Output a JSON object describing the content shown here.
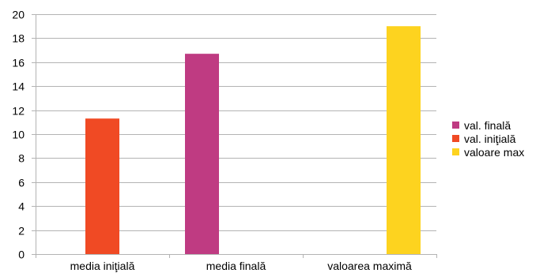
{
  "chart_data": {
    "type": "bar",
    "categories": [
      "media iniţială",
      "media finală",
      "valoarea maximă"
    ],
    "series": [
      {
        "name": "val. finală",
        "color": "#bf3b82",
        "values": [
          null,
          16.7,
          null
        ]
      },
      {
        "name": "val. iniţială",
        "color": "#f04a24",
        "values": [
          11.3,
          null,
          null
        ]
      },
      {
        "name": "valoare max",
        "color": "#fdd31f",
        "values": [
          null,
          null,
          19.0
        ]
      }
    ],
    "ylim": [
      0,
      20
    ],
    "yticks": [
      "0",
      "2",
      "4",
      "6",
      "8",
      "10",
      "12",
      "14",
      "16",
      "18",
      "20"
    ],
    "grid": true,
    "legend": "right"
  }
}
